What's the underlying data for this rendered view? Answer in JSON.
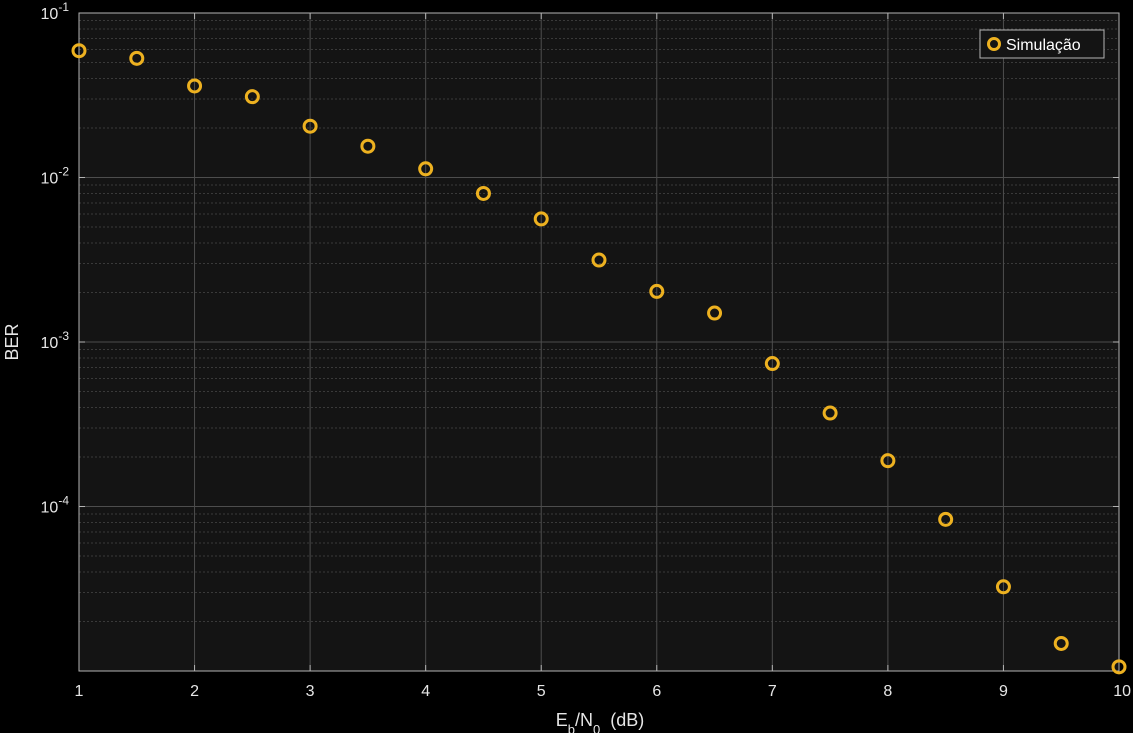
{
  "chart_data": {
    "type": "scatter",
    "title": "",
    "xlabel": {
      "base": "E",
      "sub1": "b",
      "mid": "/N",
      "sub2": "0",
      "tail": "  (dB)"
    },
    "ylabel": "BER",
    "xlim": [
      1,
      10
    ],
    "ylim": [
      1e-05,
      0.1
    ],
    "yscale": "log",
    "grid": true,
    "minor_grid": true,
    "legend_position": "top-right",
    "x_ticks": [
      "1",
      "2",
      "3",
      "4",
      "5",
      "6",
      "7",
      "8",
      "9",
      "10"
    ],
    "y_ticks": [
      {
        "base": "10",
        "exp": "-1"
      },
      {
        "base": "10",
        "exp": "-2"
      },
      {
        "base": "10",
        "exp": "-3"
      },
      {
        "base": "10",
        "exp": "-4"
      }
    ],
    "series": [
      {
        "name": "Simulação",
        "marker": "circle-open",
        "color": "#edb120",
        "x": [
          1,
          1.5,
          2,
          2.5,
          3,
          3.5,
          4,
          4.5,
          5,
          5.5,
          6,
          6.5,
          7,
          7.5,
          8,
          8.5,
          9,
          9.5,
          10
        ],
        "y": [
          0.059,
          0.053,
          0.036,
          0.031,
          0.0205,
          0.0155,
          0.0113,
          0.008,
          0.0056,
          0.00315,
          0.00203,
          0.0015,
          0.00074,
          0.00037,
          0.00019,
          8.35e-05,
          3.25e-05,
          1.47e-05,
          1.06e-05
        ]
      }
    ],
    "colors": {
      "figure_bg": "#000000",
      "axes_bg": "#141414",
      "grid_major": "#4d4d4d",
      "grid_minor": "#3a3a3a",
      "axis": "#b3b3b3",
      "text": "#e6e6e6"
    }
  }
}
